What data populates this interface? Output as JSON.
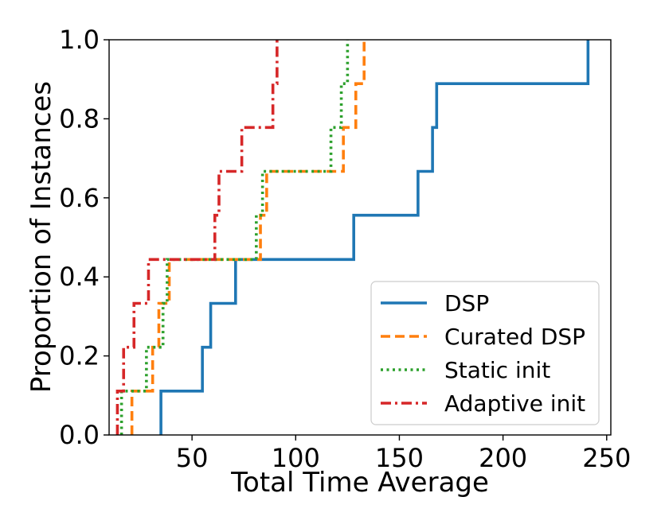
{
  "chart_data": {
    "type": "line",
    "title": "",
    "xlabel": "Total Time Average",
    "ylabel": "Proportion of Instances",
    "xlim": [
      10,
      252
    ],
    "ylim": [
      0,
      1
    ],
    "xticks": [
      50,
      100,
      150,
      200,
      250
    ],
    "yticks": [
      0.0,
      0.2,
      0.4,
      0.6,
      0.8,
      1.0
    ],
    "xtick_labels": [
      "50",
      "100",
      "150",
      "200",
      "250"
    ],
    "ytick_labels": [
      "0.0",
      "0.2",
      "0.4",
      "0.6",
      "0.8",
      "1.0"
    ],
    "grid": false,
    "legend_position": "lower-right",
    "series": [
      {
        "name": "DSP",
        "color": "#1f77b4",
        "style": "solid",
        "x": [
          35,
          55,
          59,
          71,
          128,
          159,
          166,
          168,
          241
        ],
        "y": [
          0.111,
          0.222,
          0.333,
          0.444,
          0.556,
          0.667,
          0.778,
          0.889,
          1.0
        ]
      },
      {
        "name": "Curated DSP",
        "color": "#ff7f0e",
        "style": "dashed",
        "x": [
          21,
          31,
          34,
          39,
          83,
          86,
          123,
          129,
          133
        ],
        "y": [
          0.111,
          0.222,
          0.333,
          0.444,
          0.556,
          0.667,
          0.778,
          0.889,
          1.0
        ]
      },
      {
        "name": "Static init",
        "color": "#2ca02c",
        "style": "dotted",
        "x": [
          16,
          28,
          36,
          38,
          81,
          84,
          117,
          122,
          125
        ],
        "y": [
          0.111,
          0.222,
          0.333,
          0.444,
          0.556,
          0.667,
          0.778,
          0.889,
          1.0
        ]
      },
      {
        "name": "Adaptive init",
        "color": "#d62728",
        "style": "dashdot",
        "x": [
          14,
          17,
          22,
          29,
          61,
          63,
          74,
          89,
          91
        ],
        "y": [
          0.111,
          0.222,
          0.333,
          0.444,
          0.556,
          0.667,
          0.778,
          0.889,
          1.0
        ]
      }
    ]
  }
}
